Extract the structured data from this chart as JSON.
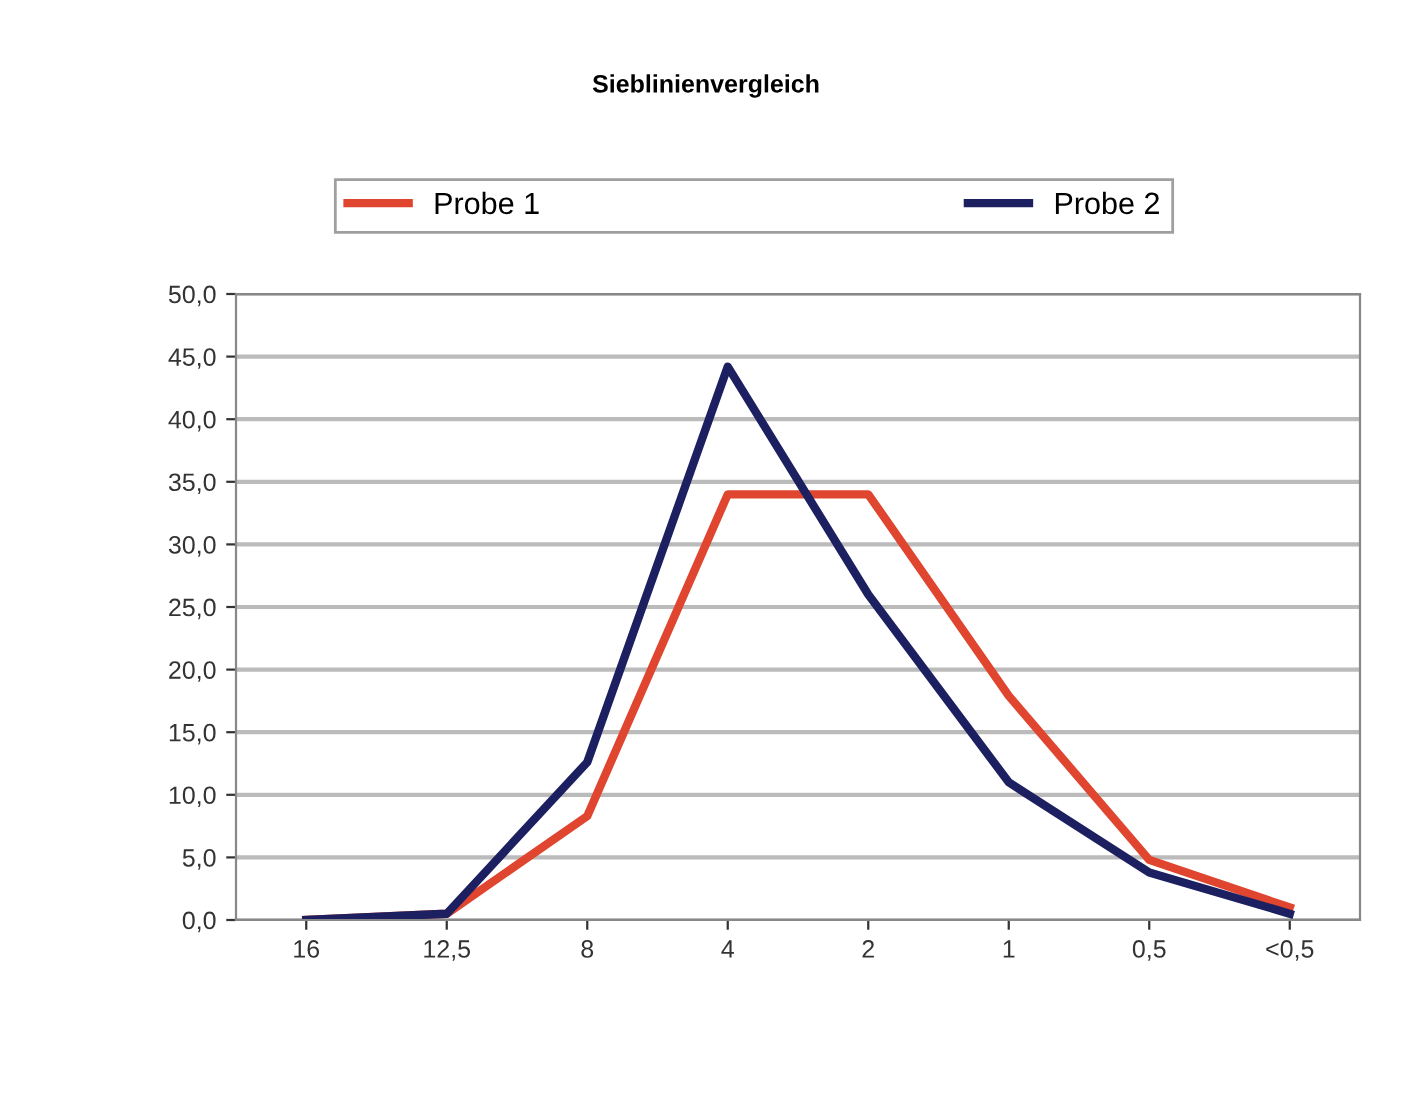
{
  "chart_data": {
    "type": "line",
    "title": "Sieblinienvergleich",
    "categories": [
      "16",
      "12,5",
      "8",
      "4",
      "2",
      "1",
      "0,5",
      "<0,5"
    ],
    "series": [
      {
        "name": "Probe 1",
        "color": "#e0452f",
        "values": [
          0,
          0.5,
          8.3,
          34,
          34,
          17.9,
          4.8,
          1
        ]
      },
      {
        "name": "Probe 2",
        "color": "#1c2060",
        "values": [
          0,
          0.5,
          12.6,
          44.2,
          26,
          11,
          3.8,
          0.5
        ]
      }
    ],
    "ylim": [
      0,
      50
    ],
    "yticks": [
      {
        "value": 0,
        "label": "0,0"
      },
      {
        "value": 5,
        "label": "5,0"
      },
      {
        "value": 10,
        "label": "10,0"
      },
      {
        "value": 15,
        "label": "15,0"
      },
      {
        "value": 20,
        "label": "20,0"
      },
      {
        "value": 25,
        "label": "25,0"
      },
      {
        "value": 30,
        "label": "30,0"
      },
      {
        "value": 35,
        "label": "35,0"
      },
      {
        "value": 40,
        "label": "40,0"
      },
      {
        "value": 45,
        "label": "45,0"
      },
      {
        "value": 50,
        "label": "50,0"
      }
    ],
    "grid": "y",
    "legend": "top",
    "marker": "none",
    "line_style": "solid"
  }
}
